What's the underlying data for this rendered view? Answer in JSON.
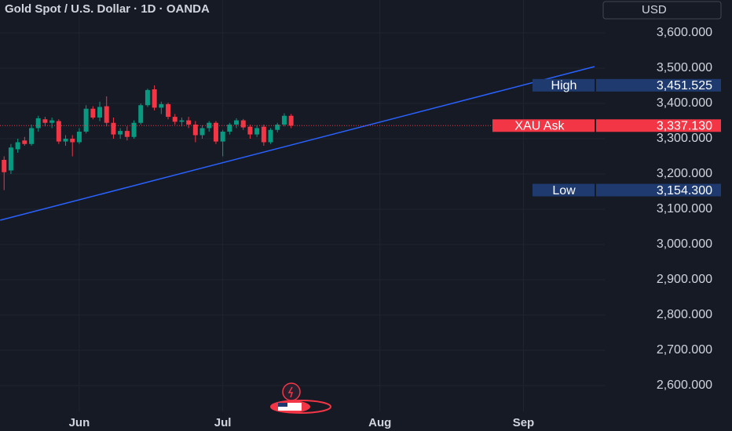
{
  "chart_data": {
    "type": "candlestick",
    "title": "Gold Spot / U.S. Dollar · 1D · OANDA",
    "currency_button": "USD",
    "x": [
      0,
      1,
      2,
      3,
      4,
      5,
      6,
      7,
      8,
      9,
      10,
      11,
      12,
      13,
      14,
      15,
      16,
      17,
      18,
      19,
      20,
      21,
      22,
      23,
      24,
      25,
      26,
      27,
      28,
      29,
      30,
      31,
      32,
      33,
      34,
      35,
      36,
      37,
      38,
      39,
      40,
      41,
      42
    ],
    "open": [
      3240,
      3210,
      3270,
      3295,
      3285,
      3330,
      3355,
      3345,
      3350,
      3292,
      3300,
      3290,
      3320,
      3385,
      3360,
      3392,
      3345,
      3312,
      3322,
      3305,
      3345,
      3395,
      3440,
      3388,
      3398,
      3362,
      3348,
      3352,
      3340,
      3310,
      3330,
      3345,
      3292,
      3320,
      3340,
      3352,
      3334,
      3312,
      3334,
      3290,
      3325,
      3340,
      3365
    ],
    "high": [
      3250,
      3285,
      3300,
      3305,
      3340,
      3365,
      3362,
      3360,
      3355,
      3310,
      3310,
      3330,
      3395,
      3392,
      3405,
      3420,
      3360,
      3330,
      3335,
      3352,
      3400,
      3442,
      3451.525,
      3405,
      3402,
      3370,
      3360,
      3362,
      3350,
      3338,
      3350,
      3350,
      3325,
      3345,
      3358,
      3356,
      3340,
      3338,
      3340,
      3330,
      3345,
      3372,
      3370
    ],
    "low": [
      3154.3,
      3200,
      3260,
      3280,
      3280,
      3320,
      3335,
      3330,
      3285,
      3280,
      3250,
      3285,
      3315,
      3355,
      3350,
      3335,
      3300,
      3300,
      3295,
      3300,
      3340,
      3390,
      3380,
      3370,
      3355,
      3340,
      3335,
      3330,
      3290,
      3300,
      3320,
      3285,
      3250,
      3312,
      3330,
      3325,
      3300,
      3305,
      3280,
      3285,
      3318,
      3335,
      3330
    ],
    "close": [
      3205,
      3275,
      3290,
      3285,
      3330,
      3358,
      3345,
      3352,
      3292,
      3300,
      3290,
      3320,
      3385,
      3360,
      3390,
      3345,
      3312,
      3322,
      3305,
      3345,
      3395,
      3438,
      3388,
      3398,
      3362,
      3348,
      3352,
      3340,
      3310,
      3330,
      3345,
      3292,
      3320,
      3340,
      3352,
      3332,
      3312,
      3330,
      3290,
      3325,
      3340,
      3365,
      3337.13
    ],
    "up_color": "#089981",
    "down_color": "#f23645",
    "xlim": [
      -0.6,
      87.9
    ],
    "ylim": [
      2526.7,
      3693.3
    ],
    "xticks": [
      {
        "value": 11,
        "label": "Jun"
      },
      {
        "value": 32,
        "label": "Jul"
      },
      {
        "value": 55,
        "label": "Aug"
      },
      {
        "value": 76,
        "label": "Sep"
      }
    ],
    "yticks": [
      {
        "value": 3600,
        "label": "3,600.000"
      },
      {
        "value": 3500,
        "label": "3,500.000"
      },
      {
        "value": 3400,
        "label": "3,400.000"
      },
      {
        "value": 3300,
        "label": "3,300.000"
      },
      {
        "value": 3200,
        "label": "3,200.000"
      },
      {
        "value": 3100,
        "label": "3,100.000"
      },
      {
        "value": 3000,
        "label": "3,000.000"
      },
      {
        "value": 2900,
        "label": "2,900.000"
      },
      {
        "value": 2800,
        "label": "2,800.000"
      },
      {
        "value": 2700,
        "label": "2,700.000"
      },
      {
        "value": 2600,
        "label": "2,600.000"
      }
    ],
    "grid": true,
    "trendline": {
      "x": [
        -0.57,
        86.4
      ],
      "y": [
        3068.9,
        3504.4
      ],
      "color": "#2962ff"
    },
    "price_markers": [
      {
        "name": "High",
        "value": 3451.525,
        "label": "3,451.525",
        "color": "#1e3a6e"
      },
      {
        "name": "XAU Ask",
        "value": 3337.13,
        "label": "3,337.130",
        "color": "#f23645",
        "line": true
      },
      {
        "name": "Low",
        "value": 3154.3,
        "label": "3,154.300",
        "color": "#1e3a6e"
      }
    ]
  }
}
